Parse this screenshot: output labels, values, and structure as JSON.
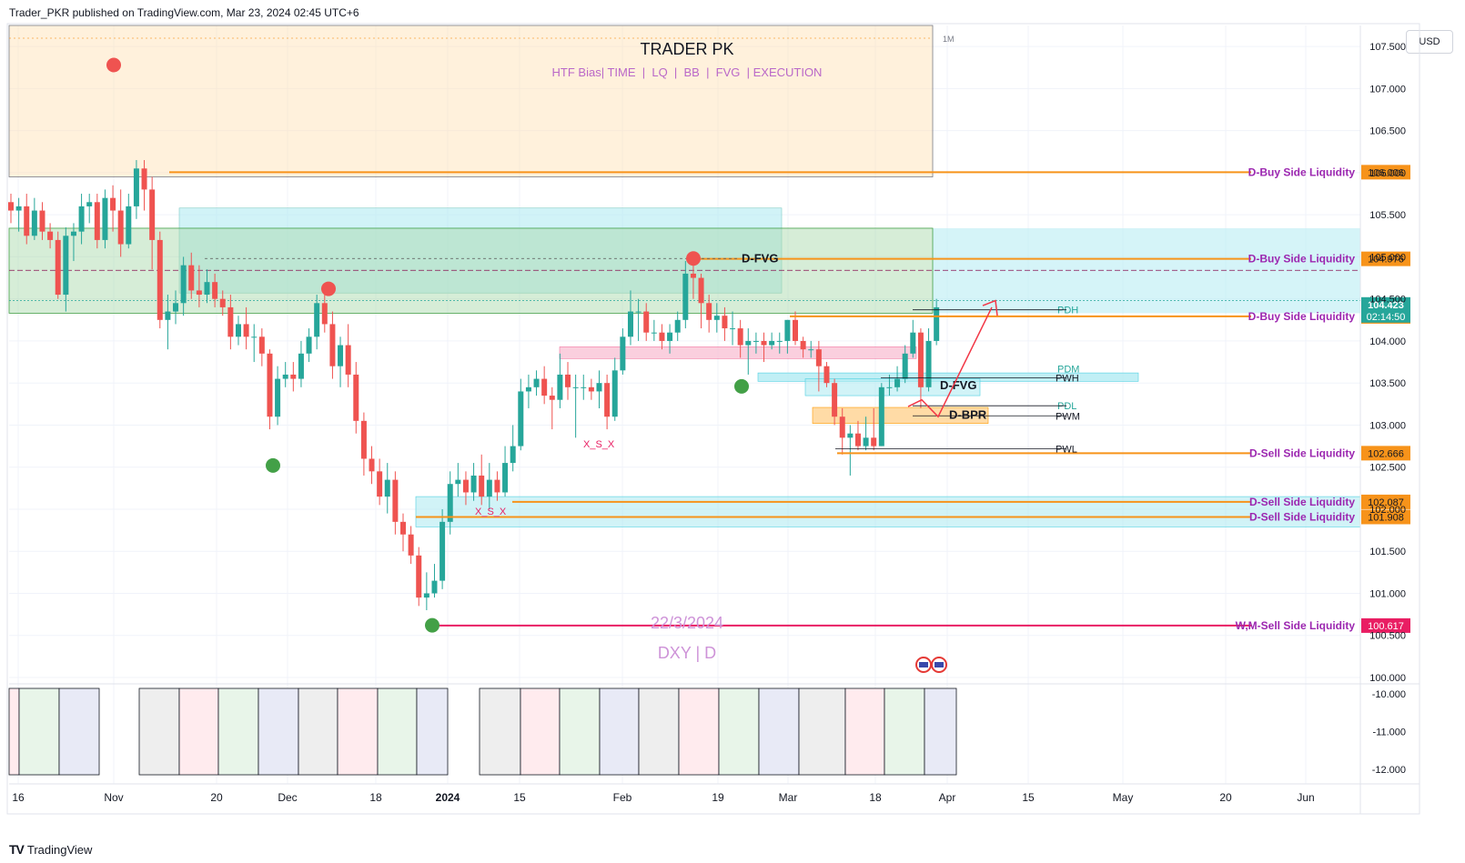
{
  "header": {
    "published": "Trader_PKR published on TradingView.com, Mar 23, 2024 02:45 UTC+6"
  },
  "footer": {
    "logo_mark": "TV",
    "brand": "TradingView"
  },
  "currency": "USD",
  "timeframe_badge": "1M",
  "title_box": {
    "title": "TRADER PK",
    "subtitle": "HTF Bias| TIME  |  LQ  |  BB  |  FVG  | EXECUTION"
  },
  "watermark": {
    "date": "22/3/2024",
    "symbol": "DXY | D"
  },
  "colors": {
    "up": "#26a69a",
    "down": "#ef5350",
    "orange": "#f7931a",
    "liquidity_text": "#9c27b0",
    "crimson": "#e91e63",
    "fvg_blue": "#b2ebf2",
    "zone_green": "#c8e6c9",
    "zone_orange": "#ffe0b2"
  },
  "chart_data": {
    "type": "candlestick",
    "symbol": "DXY",
    "interval": "D",
    "ylim": [
      100.0,
      107.75
    ],
    "y_ticks": [
      "107.500",
      "107.000",
      "106.500",
      "106.000",
      "105.500",
      "105.000",
      "104.500",
      "104.000",
      "103.500",
      "103.000",
      "102.500",
      "102.000",
      "101.500",
      "101.000",
      "100.500",
      "100.000"
    ],
    "x_ticks": [
      "16",
      "Nov",
      "20",
      "Dec",
      "18",
      "2024",
      "15",
      "Feb",
      "19",
      "Mar",
      "18",
      "Apr",
      "15",
      "May",
      "20",
      "Jun"
    ],
    "last_price": "104.423",
    "countdown": "02:14:50",
    "levels": [
      {
        "label": "D-Buy Side Liquidity",
        "price": 106.006,
        "value": "106.006",
        "color": "#f7931a"
      },
      {
        "label": "D-Buy Side Liquidity",
        "price": 104.976,
        "value": "104.976",
        "color": "#f7931a"
      },
      {
        "label": "D-Buy Side Liquidity",
        "price": 104.292,
        "value": "104.292",
        "color": "#f7931a"
      },
      {
        "label": "D-Sell Side Liquidity",
        "price": 102.666,
        "value": "102.666",
        "color": "#f7931a"
      },
      {
        "label": "D-Sell Side Liquidity",
        "price": 102.087,
        "value": "102.087",
        "color": "#f7931a"
      },
      {
        "label": "D-Sell Side Liquidity",
        "price": 101.908,
        "value": "101.908",
        "color": "#f7931a"
      },
      {
        "label": "W,M-Sell Side Liquidity",
        "price": 100.617,
        "value": "100.617",
        "color": "#e91e63"
      }
    ],
    "annotations": [
      {
        "text": "D-FVG",
        "price": 104.98
      },
      {
        "text": "D-FVG",
        "price": 103.47
      },
      {
        "text": "D-BPR",
        "price": 103.12
      },
      {
        "text": "PDH",
        "price": 104.37
      },
      {
        "text": "PDM",
        "price": 103.67
      },
      {
        "text": "PWH",
        "price": 103.56
      },
      {
        "text": "PDL",
        "price": 103.23
      },
      {
        "text": "PWM",
        "price": 103.11
      },
      {
        "text": "PWL",
        "price": 102.72
      },
      {
        "text": "X_S_X",
        "price": 102.78
      },
      {
        "text": "X_S_X",
        "price": 101.98
      }
    ],
    "candles": [
      [
        105.65,
        105.55,
        105.75,
        105.4
      ],
      [
        105.55,
        105.6,
        105.7,
        105.3
      ],
      [
        105.6,
        105.25,
        105.75,
        105.15
      ],
      [
        105.25,
        105.55,
        105.7,
        105.2
      ],
      [
        105.55,
        105.3,
        105.65,
        105.2
      ],
      [
        105.3,
        105.2,
        105.4,
        105.1
      ],
      [
        105.2,
        104.55,
        105.3,
        104.5
      ],
      [
        104.55,
        105.25,
        105.35,
        104.35
      ],
      [
        105.25,
        105.3,
        105.4,
        104.95
      ],
      [
        105.3,
        105.6,
        105.75,
        105.15
      ],
      [
        105.6,
        105.65,
        105.75,
        105.4
      ],
      [
        105.65,
        105.2,
        105.75,
        105.1
      ],
      [
        105.2,
        105.7,
        105.8,
        105.1
      ],
      [
        105.7,
        105.55,
        105.85,
        105.3
      ],
      [
        105.55,
        105.15,
        105.8,
        105.0
      ],
      [
        105.15,
        105.6,
        105.75,
        105.1
      ],
      [
        105.6,
        106.05,
        106.15,
        105.45
      ],
      [
        106.05,
        105.8,
        106.15,
        105.55
      ],
      [
        105.8,
        105.2,
        105.95,
        104.85
      ],
      [
        105.2,
        104.25,
        105.3,
        104.15
      ],
      [
        104.25,
        104.35,
        104.55,
        103.9
      ],
      [
        104.35,
        104.45,
        104.6,
        104.2
      ],
      [
        104.45,
        104.9,
        105.0,
        104.3
      ],
      [
        104.9,
        104.6,
        105.05,
        104.5
      ],
      [
        104.6,
        104.55,
        104.9,
        104.4
      ],
      [
        104.55,
        104.7,
        104.85,
        104.45
      ],
      [
        104.7,
        104.5,
        104.8,
        104.4
      ],
      [
        104.5,
        104.4,
        104.6,
        104.3
      ],
      [
        104.4,
        104.05,
        104.55,
        103.9
      ],
      [
        104.05,
        104.2,
        104.3,
        103.95
      ],
      [
        104.2,
        104.05,
        104.4,
        103.9
      ],
      [
        104.05,
        104.05,
        104.2,
        103.75
      ],
      [
        104.05,
        103.85,
        104.15,
        103.7
      ],
      [
        103.85,
        103.1,
        103.9,
        102.95
      ],
      [
        103.1,
        103.55,
        103.7,
        103.0
      ],
      [
        103.55,
        103.6,
        103.75,
        103.45
      ],
      [
        103.6,
        103.55,
        103.75,
        103.4
      ],
      [
        103.55,
        103.85,
        104.0,
        103.45
      ],
      [
        103.85,
        104.05,
        104.15,
        103.75
      ],
      [
        104.05,
        104.45,
        104.55,
        103.9
      ],
      [
        104.45,
        104.2,
        104.55,
        104.1
      ],
      [
        104.2,
        103.7,
        104.35,
        103.55
      ],
      [
        103.7,
        103.95,
        104.05,
        103.45
      ],
      [
        103.95,
        103.6,
        104.2,
        103.45
      ],
      [
        103.6,
        103.05,
        103.75,
        102.9
      ],
      [
        103.05,
        102.6,
        103.15,
        102.4
      ],
      [
        102.6,
        102.45,
        102.75,
        102.3
      ],
      [
        102.45,
        102.15,
        102.6,
        102.05
      ],
      [
        102.15,
        102.35,
        102.55,
        101.95
      ],
      [
        102.35,
        101.85,
        102.45,
        101.7
      ],
      [
        101.85,
        101.7,
        101.95,
        101.5
      ],
      [
        101.7,
        101.45,
        101.8,
        101.35
      ],
      [
        101.45,
        100.95,
        101.55,
        100.85
      ],
      [
        100.95,
        101.0,
        101.25,
        100.8
      ],
      [
        101.0,
        101.15,
        101.35,
        100.95
      ],
      [
        101.15,
        101.85,
        102.0,
        101.05
      ],
      [
        101.85,
        102.3,
        102.45,
        101.7
      ],
      [
        102.3,
        102.35,
        102.55,
        102.15
      ],
      [
        102.35,
        102.2,
        102.45,
        102.05
      ],
      [
        102.2,
        102.4,
        102.55,
        102.1
      ],
      [
        102.4,
        102.15,
        102.65,
        102.05
      ],
      [
        102.15,
        102.35,
        102.55,
        102.0
      ],
      [
        102.35,
        102.2,
        102.45,
        102.1
      ],
      [
        102.2,
        102.55,
        102.75,
        102.15
      ],
      [
        102.55,
        102.75,
        103.0,
        102.45
      ],
      [
        102.75,
        103.4,
        103.55,
        102.7
      ],
      [
        103.4,
        103.45,
        103.6,
        103.2
      ],
      [
        103.45,
        103.55,
        103.65,
        103.35
      ],
      [
        103.55,
        103.35,
        103.7,
        103.25
      ],
      [
        103.35,
        103.3,
        103.45,
        102.95
      ],
      [
        103.3,
        103.6,
        103.85,
        103.2
      ],
      [
        103.6,
        103.45,
        103.75,
        103.3
      ],
      [
        103.45,
        103.45,
        103.6,
        102.85
      ],
      [
        103.45,
        103.45,
        103.6,
        103.3
      ],
      [
        103.45,
        103.4,
        103.55,
        103.3
      ],
      [
        103.4,
        103.5,
        103.65,
        103.2
      ],
      [
        103.5,
        103.1,
        103.6,
        102.95
      ],
      [
        103.1,
        103.65,
        103.8,
        103.05
      ],
      [
        103.65,
        104.05,
        104.15,
        103.6
      ],
      [
        104.05,
        104.35,
        104.6,
        103.95
      ],
      [
        104.35,
        104.35,
        104.5,
        104.0
      ],
      [
        104.35,
        104.1,
        104.45,
        104.0
      ],
      [
        104.1,
        104.1,
        104.25,
        104.0
      ],
      [
        104.1,
        104.0,
        104.2,
        103.9
      ],
      [
        104.0,
        104.1,
        104.2,
        103.85
      ],
      [
        104.1,
        104.25,
        104.35,
        104.0
      ],
      [
        104.25,
        104.8,
        104.95,
        104.15
      ],
      [
        104.8,
        104.75,
        104.9,
        104.5
      ],
      [
        104.75,
        104.45,
        104.8,
        104.15
      ],
      [
        104.45,
        104.25,
        104.55,
        104.1
      ],
      [
        104.25,
        104.3,
        104.45,
        104.1
      ],
      [
        104.3,
        104.15,
        104.4,
        104.0
      ],
      [
        104.15,
        104.15,
        104.35,
        103.95
      ],
      [
        104.15,
        103.95,
        104.25,
        103.8
      ],
      [
        103.95,
        104.0,
        104.15,
        103.6
      ],
      [
        104.0,
        104.0,
        104.1,
        103.85
      ],
      [
        104.0,
        103.95,
        104.1,
        103.75
      ],
      [
        103.95,
        104.0,
        104.1,
        103.9
      ],
      [
        104.0,
        104.0,
        104.1,
        103.85
      ],
      [
        104.0,
        104.25,
        104.25,
        103.85
      ],
      [
        104.25,
        104.0,
        104.35,
        103.95
      ],
      [
        104.0,
        103.9,
        104.05,
        103.8
      ],
      [
        103.9,
        103.9,
        104.0,
        103.8
      ],
      [
        103.9,
        103.7,
        104.0,
        103.4
      ],
      [
        103.7,
        103.5,
        103.75,
        103.45
      ],
      [
        103.5,
        103.1,
        103.55,
        103.0
      ],
      [
        103.1,
        102.85,
        103.2,
        102.65
      ],
      [
        102.85,
        102.9,
        103.0,
        102.4
      ],
      [
        102.9,
        102.75,
        103.05,
        102.7
      ],
      [
        102.75,
        102.85,
        103.1,
        102.7
      ],
      [
        102.85,
        102.75,
        103.2,
        102.7
      ],
      [
        102.75,
        103.45,
        103.5,
        102.75
      ],
      [
        103.45,
        103.45,
        103.6,
        103.35
      ],
      [
        103.45,
        103.55,
        103.7,
        103.4
      ],
      [
        103.55,
        103.85,
        103.95,
        103.5
      ],
      [
        103.85,
        104.1,
        104.25,
        103.8
      ],
      [
        104.1,
        103.45,
        104.15,
        103.2
      ],
      [
        103.45,
        104.0,
        104.15,
        103.4
      ],
      [
        104.0,
        104.4,
        104.5,
        103.95
      ]
    ],
    "sub_pane": {
      "ylim": [
        -12.15,
        -9.85
      ],
      "y_ticks": [
        "-10.000",
        "-11.000",
        "-12.000"
      ]
    }
  }
}
